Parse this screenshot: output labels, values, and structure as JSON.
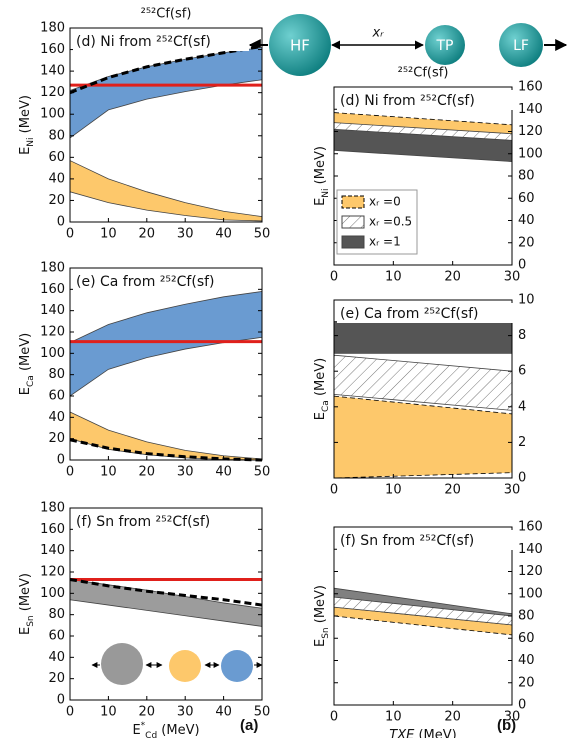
{
  "chart_data": [
    {
      "type": "area",
      "header": "²⁵²Cf(sf)",
      "title": "(d) Ni from ²⁵²Cf(sf)",
      "ylabel": {
        "text": "E",
        "sub": "Ni",
        "unit": " (MeV)"
      },
      "y_axis_position": "left",
      "x": [
        0,
        10,
        20,
        30,
        40,
        50
      ],
      "xlim": [
        0,
        50
      ],
      "xticks": [
        0,
        10,
        20,
        30,
        40,
        50
      ],
      "ylim": [
        0,
        180
      ],
      "yticks": [
        0,
        20,
        40,
        60,
        80,
        100,
        120,
        140,
        160,
        180
      ],
      "bands": [
        {
          "color": "#6a9bd1",
          "low": [
            78,
            104,
            114,
            121,
            127,
            132
          ],
          "high": [
            122,
            135,
            144,
            151,
            157,
            162
          ]
        },
        {
          "color": "#fdc86b",
          "low": [
            28,
            18,
            11,
            6,
            2,
            1
          ],
          "high": [
            57,
            40,
            28,
            18,
            10,
            5
          ]
        }
      ],
      "lines": [
        {
          "color": "#000000",
          "dashed": true,
          "values": [
            120,
            134,
            144,
            151,
            157,
            163
          ]
        }
      ],
      "reference": {
        "value": 127,
        "color": "#e0201b"
      }
    },
    {
      "type": "area",
      "title": "(e) Ca from ²⁵²Cf(sf)",
      "ylabel": {
        "text": "E",
        "sub": "Ca",
        "unit": " (MeV)"
      },
      "y_axis_position": "left",
      "x": [
        0,
        10,
        20,
        30,
        40,
        50
      ],
      "xlim": [
        0,
        50
      ],
      "xticks": [
        0,
        10,
        20,
        30,
        40,
        50
      ],
      "ylim": [
        0,
        180
      ],
      "yticks": [
        0,
        20,
        40,
        60,
        80,
        100,
        120,
        140,
        160,
        180
      ],
      "bands": [
        {
          "color": "#6a9bd1",
          "low": [
            60,
            85,
            96,
            104,
            110,
            115
          ],
          "high": [
            110,
            127,
            138,
            146,
            153,
            158
          ]
        },
        {
          "color": "#fdc86b",
          "low": [
            20,
            10,
            5,
            2,
            0.5,
            0
          ],
          "high": [
            45,
            28,
            17,
            9,
            4,
            1
          ]
        }
      ],
      "lines": [
        {
          "color": "#000000",
          "dashed": true,
          "values": [
            19,
            11,
            6,
            3,
            1,
            0
          ]
        }
      ],
      "reference": {
        "value": 111,
        "color": "#e0201b"
      }
    },
    {
      "type": "area",
      "title": "(f) Sn from ²⁵²Cf(sf)",
      "ylabel": {
        "text": "E",
        "sub": "Sn",
        "unit": " (MeV)"
      },
      "xlabel": {
        "text": "E",
        "sup": "*",
        "sub": "Cd",
        "unit": " (MeV)"
      },
      "y_axis_position": "left",
      "x": [
        0,
        10,
        20,
        30,
        40,
        50
      ],
      "xlim": [
        0,
        50
      ],
      "xticks": [
        0,
        10,
        20,
        30,
        40,
        50
      ],
      "ylim": [
        0,
        180
      ],
      "yticks": [
        0,
        20,
        40,
        60,
        80,
        100,
        120,
        140,
        160,
        180
      ],
      "bands": [
        {
          "color": "#9c9c9c",
          "low": [
            94,
            89,
            84,
            79,
            74,
            69
          ],
          "high": [
            113,
            108,
            103,
            97,
            91,
            86
          ]
        }
      ],
      "lines": [
        {
          "color": "#000000",
          "dashed": true,
          "values": [
            113,
            107,
            102,
            98,
            94,
            89
          ]
        }
      ],
      "reference": {
        "value": 113,
        "color": "#e0201b"
      }
    },
    {
      "type": "area",
      "header": "²⁵²Cf(sf)",
      "title": "(d) Ni from ²⁵²Cf(sf)",
      "ylabel": {
        "text": "E",
        "sub": "Ni",
        "unit": " (MeV)"
      },
      "y_axis_position": "right",
      "x": [
        0,
        30
      ],
      "xlim": [
        0,
        30
      ],
      "xticks": [
        0,
        10,
        20,
        30
      ],
      "ylim": [
        0,
        160
      ],
      "yticks": [
        0,
        20,
        40,
        60,
        80,
        100,
        120,
        140,
        160
      ],
      "bands": [
        {
          "name": "xᵣ =0",
          "color": "#fdc86b",
          "dashed": true,
          "low": [
            120,
            110
          ],
          "high": [
            137,
            126
          ]
        },
        {
          "name": "xᵣ =0.5",
          "color": "none",
          "hatch": true,
          "low": [
            113,
            104
          ],
          "high": [
            128,
            118
          ]
        },
        {
          "name": "xᵣ =1",
          "color": "#555555",
          "low": [
            103,
            93
          ],
          "high": [
            122,
            112
          ]
        }
      ],
      "legend": "lower left"
    },
    {
      "type": "area",
      "title": "(e) Ca from ²⁵²Cf(sf)",
      "ylabel": {
        "text": "E",
        "sub": "Ca",
        "unit": " (MeV)"
      },
      "y_axis_position": "right",
      "x": [
        0,
        30
      ],
      "xlim": [
        0,
        30
      ],
      "xticks": [
        0,
        10,
        20,
        30
      ],
      "ylim": [
        0,
        10
      ],
      "yticks": [
        0,
        2,
        4,
        6,
        8,
        10
      ],
      "bands": [
        {
          "color": "#555555",
          "low": [
            7.0,
            7.0
          ],
          "high": [
            8.8,
            8.8
          ]
        },
        {
          "color": "none",
          "hatch": true,
          "low": [
            4.7,
            3.8
          ],
          "high": [
            6.9,
            6.0
          ]
        },
        {
          "color": "#fdc86b",
          "dashed": true,
          "low": [
            0,
            0.3
          ],
          "high": [
            4.6,
            3.6
          ]
        }
      ]
    },
    {
      "type": "area",
      "title": "(f) Sn from ²⁵²Cf(sf)",
      "ylabel": {
        "text": "E",
        "sub": "Sn",
        "unit": " (MeV)"
      },
      "xlabel": {
        "text": "TXE",
        "unit": " (MeV)"
      },
      "y_axis_position": "right",
      "x": [
        0,
        30
      ],
      "xlim": [
        0,
        30
      ],
      "xticks": [
        0,
        10,
        20,
        30
      ],
      "ylim": [
        0,
        160
      ],
      "yticks": [
        0,
        20,
        40,
        60,
        80,
        100,
        120,
        140,
        160
      ],
      "bands": [
        {
          "color": "#fdc86b",
          "dashed": true,
          "low": [
            80,
            63
          ],
          "high": [
            90,
            77
          ]
        },
        {
          "color": "#555555",
          "opacity": 0.75,
          "low": [
            88,
            72
          ],
          "high": [
            105,
            82
          ]
        },
        {
          "color": "none",
          "hatch": true,
          "low": [
            88,
            72
          ],
          "high": [
            97,
            80
          ]
        }
      ]
    }
  ],
  "diagram": {
    "labels": [
      "HF",
      "TP",
      "LF"
    ],
    "distance": "xᵣ"
  },
  "panel_labels": [
    "(a)",
    "(b)"
  ]
}
